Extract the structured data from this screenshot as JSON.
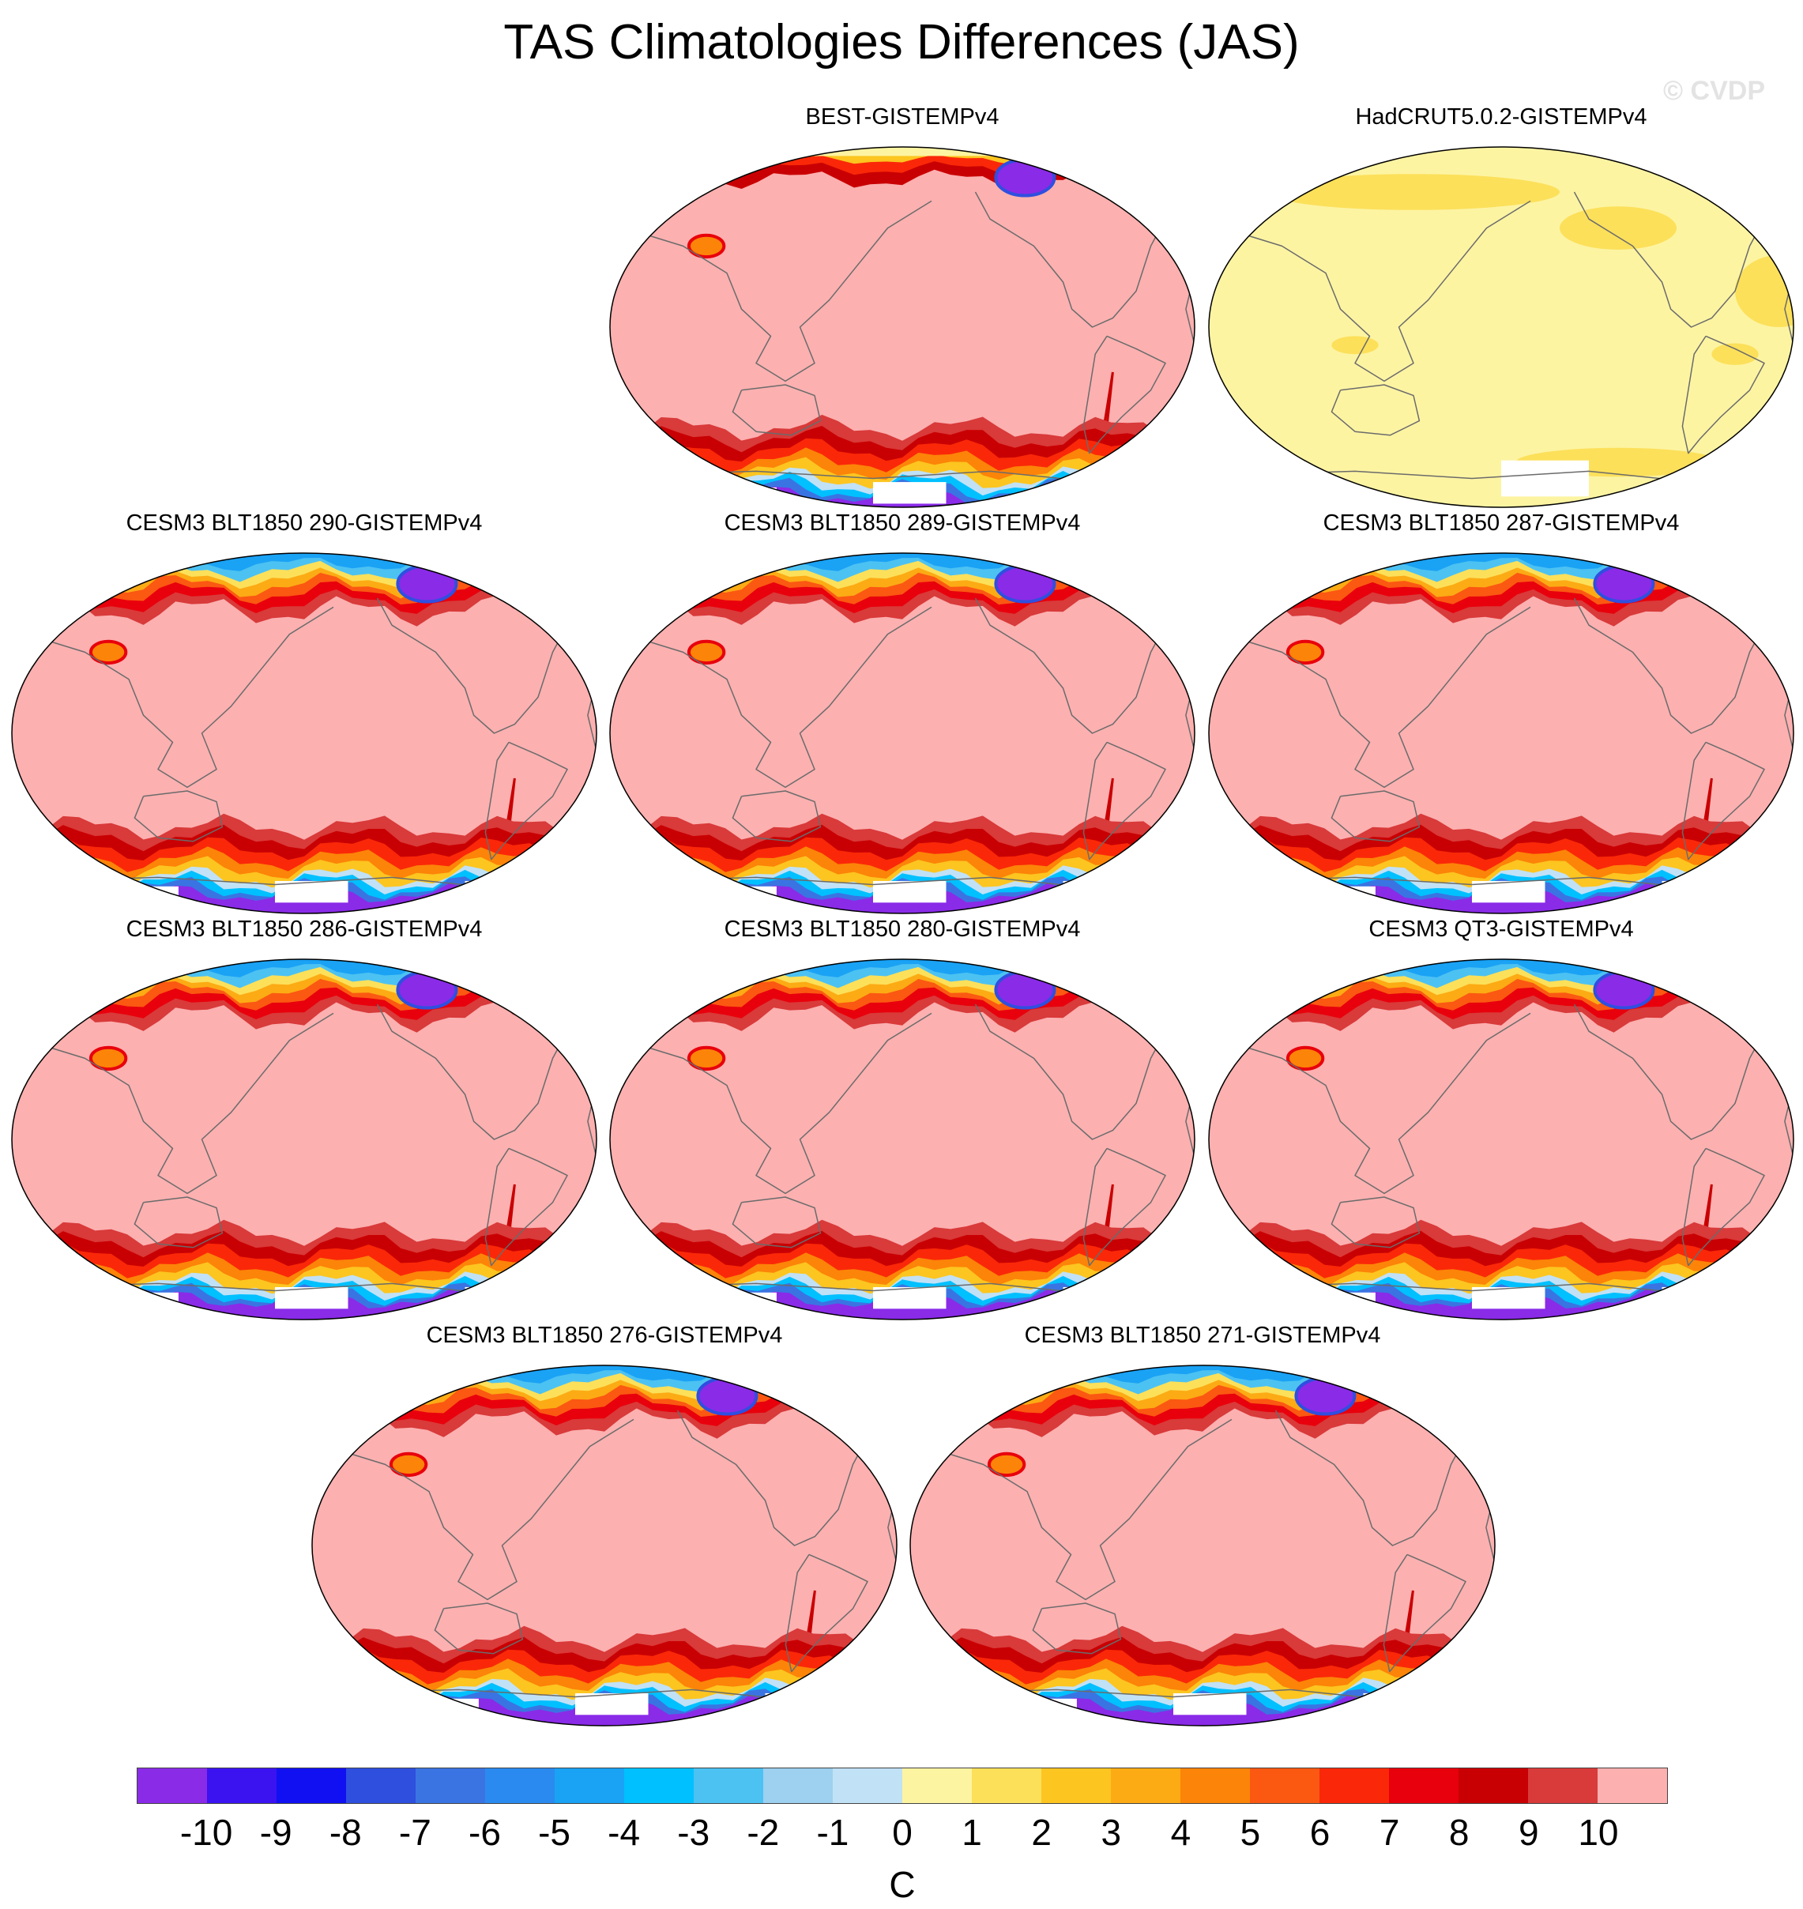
{
  "title": "TAS Climatologies Differences (JAS)",
  "watermark": "© CVDP",
  "panels": [
    {
      "label": "BEST-GISTEMPv4",
      "style": "best"
    },
    {
      "label": "HadCRUT5.0.2-GISTEMPv4",
      "style": "hadcrut"
    },
    {
      "label": "CESM3 BLT1850 290-GISTEMPv4",
      "style": "model"
    },
    {
      "label": "CESM3 BLT1850 289-GISTEMPv4",
      "style": "model"
    },
    {
      "label": "CESM3 BLT1850 287-GISTEMPv4",
      "style": "model"
    },
    {
      "label": "CESM3 BLT1850 286-GISTEMPv4",
      "style": "model"
    },
    {
      "label": "CESM3 BLT1850 280-GISTEMPv4",
      "style": "model"
    },
    {
      "label": "CESM3 QT3-GISTEMPv4",
      "style": "model"
    },
    {
      "label": "CESM3 BLT1850 276-GISTEMPv4",
      "style": "model"
    },
    {
      "label": "CESM3 BLT1850 271-GISTEMPv4",
      "style": "model"
    }
  ],
  "colorbar": {
    "labels": [
      "-10",
      "-9",
      "-8",
      "-7",
      "-6",
      "-5",
      "-4",
      "-3",
      "-2",
      "-1",
      "0",
      "1",
      "2",
      "3",
      "4",
      "5",
      "6",
      "7",
      "8",
      "9",
      "10"
    ],
    "colors": [
      "#8a2be8",
      "#3a13f0",
      "#1010f2",
      "#2f4fdf",
      "#3a74e2",
      "#2a8af0",
      "#1aa2f5",
      "#00c0ff",
      "#4cc2f2",
      "#9ed0ef",
      "#c1e1f6",
      "#fdf4a2",
      "#fce05a",
      "#fcc520",
      "#fcab14",
      "#fc8408",
      "#fb5812",
      "#fa2808",
      "#e8000c",
      "#c90003",
      "#d93a3a",
      "#fcb0b0"
    ],
    "units": "C"
  }
}
